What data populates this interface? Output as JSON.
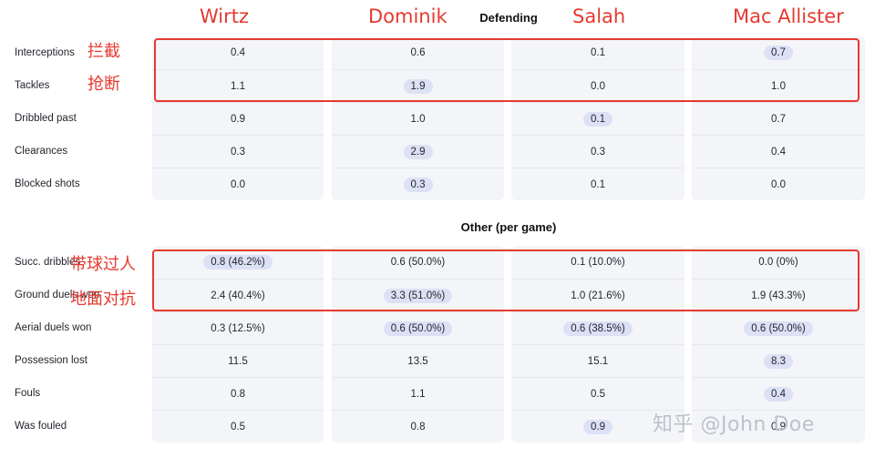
{
  "players": [
    "Wirtz",
    "Dominik",
    "Salah",
    "Mac Allister"
  ],
  "sections": {
    "defending": {
      "title": "Defending",
      "rows": [
        {
          "label": "Interceptions",
          "values": [
            "0.4",
            "0.6",
            "0.1",
            "0.7"
          ],
          "highlight": [
            false,
            false,
            false,
            true
          ]
        },
        {
          "label": "Tackles",
          "values": [
            "1.1",
            "1.9",
            "0.0",
            "1.0"
          ],
          "highlight": [
            false,
            true,
            false,
            false
          ]
        },
        {
          "label": "Dribbled past",
          "values": [
            "0.9",
            "1.0",
            "0.1",
            "0.7"
          ],
          "highlight": [
            false,
            false,
            true,
            false
          ]
        },
        {
          "label": "Clearances",
          "values": [
            "0.3",
            "2.9",
            "0.3",
            "0.4"
          ],
          "highlight": [
            false,
            true,
            false,
            false
          ]
        },
        {
          "label": "Blocked shots",
          "values": [
            "0.0",
            "0.3",
            "0.1",
            "0.0"
          ],
          "highlight": [
            false,
            true,
            false,
            false
          ]
        }
      ]
    },
    "other": {
      "title": "Other (per game)",
      "rows": [
        {
          "label": "Succ. dribbles",
          "values": [
            "0.8 (46.2%)",
            "0.6 (50.0%)",
            "0.1 (10.0%)",
            "0.0 (0%)"
          ],
          "highlight": [
            true,
            false,
            false,
            false
          ]
        },
        {
          "label": "Ground duels won",
          "values": [
            "2.4 (40.4%)",
            "3.3 (51.0%)",
            "1.0 (21.6%)",
            "1.9 (43.3%)"
          ],
          "highlight": [
            false,
            true,
            false,
            false
          ]
        },
        {
          "label": "Aerial duels won",
          "values": [
            "0.3 (12.5%)",
            "0.6 (50.0%)",
            "0.6 (38.5%)",
            "0.6 (50.0%)"
          ],
          "highlight": [
            false,
            true,
            true,
            true
          ]
        },
        {
          "label": "Possession lost",
          "values": [
            "11.5",
            "13.5",
            "15.1",
            "8.3"
          ],
          "highlight": [
            false,
            false,
            false,
            true
          ]
        },
        {
          "label": "Fouls",
          "values": [
            "0.8",
            "1.1",
            "0.5",
            "0.4"
          ],
          "highlight": [
            false,
            false,
            false,
            true
          ]
        },
        {
          "label": "Was fouled",
          "values": [
            "0.5",
            "0.8",
            "0.9",
            "0.9"
          ],
          "highlight": [
            false,
            false,
            true,
            false
          ]
        }
      ]
    }
  },
  "annotations": {
    "interceptions": "拦截",
    "tackles": "抢断",
    "dribbles": "带球过人",
    "ground_duels": "地面对抗"
  },
  "watermark": "知乎 @John Doe",
  "colors": {
    "annotation_red": "#e53a2f",
    "cell_bg": "#f4f5f9",
    "highlight_bg": "#dde1f5"
  }
}
